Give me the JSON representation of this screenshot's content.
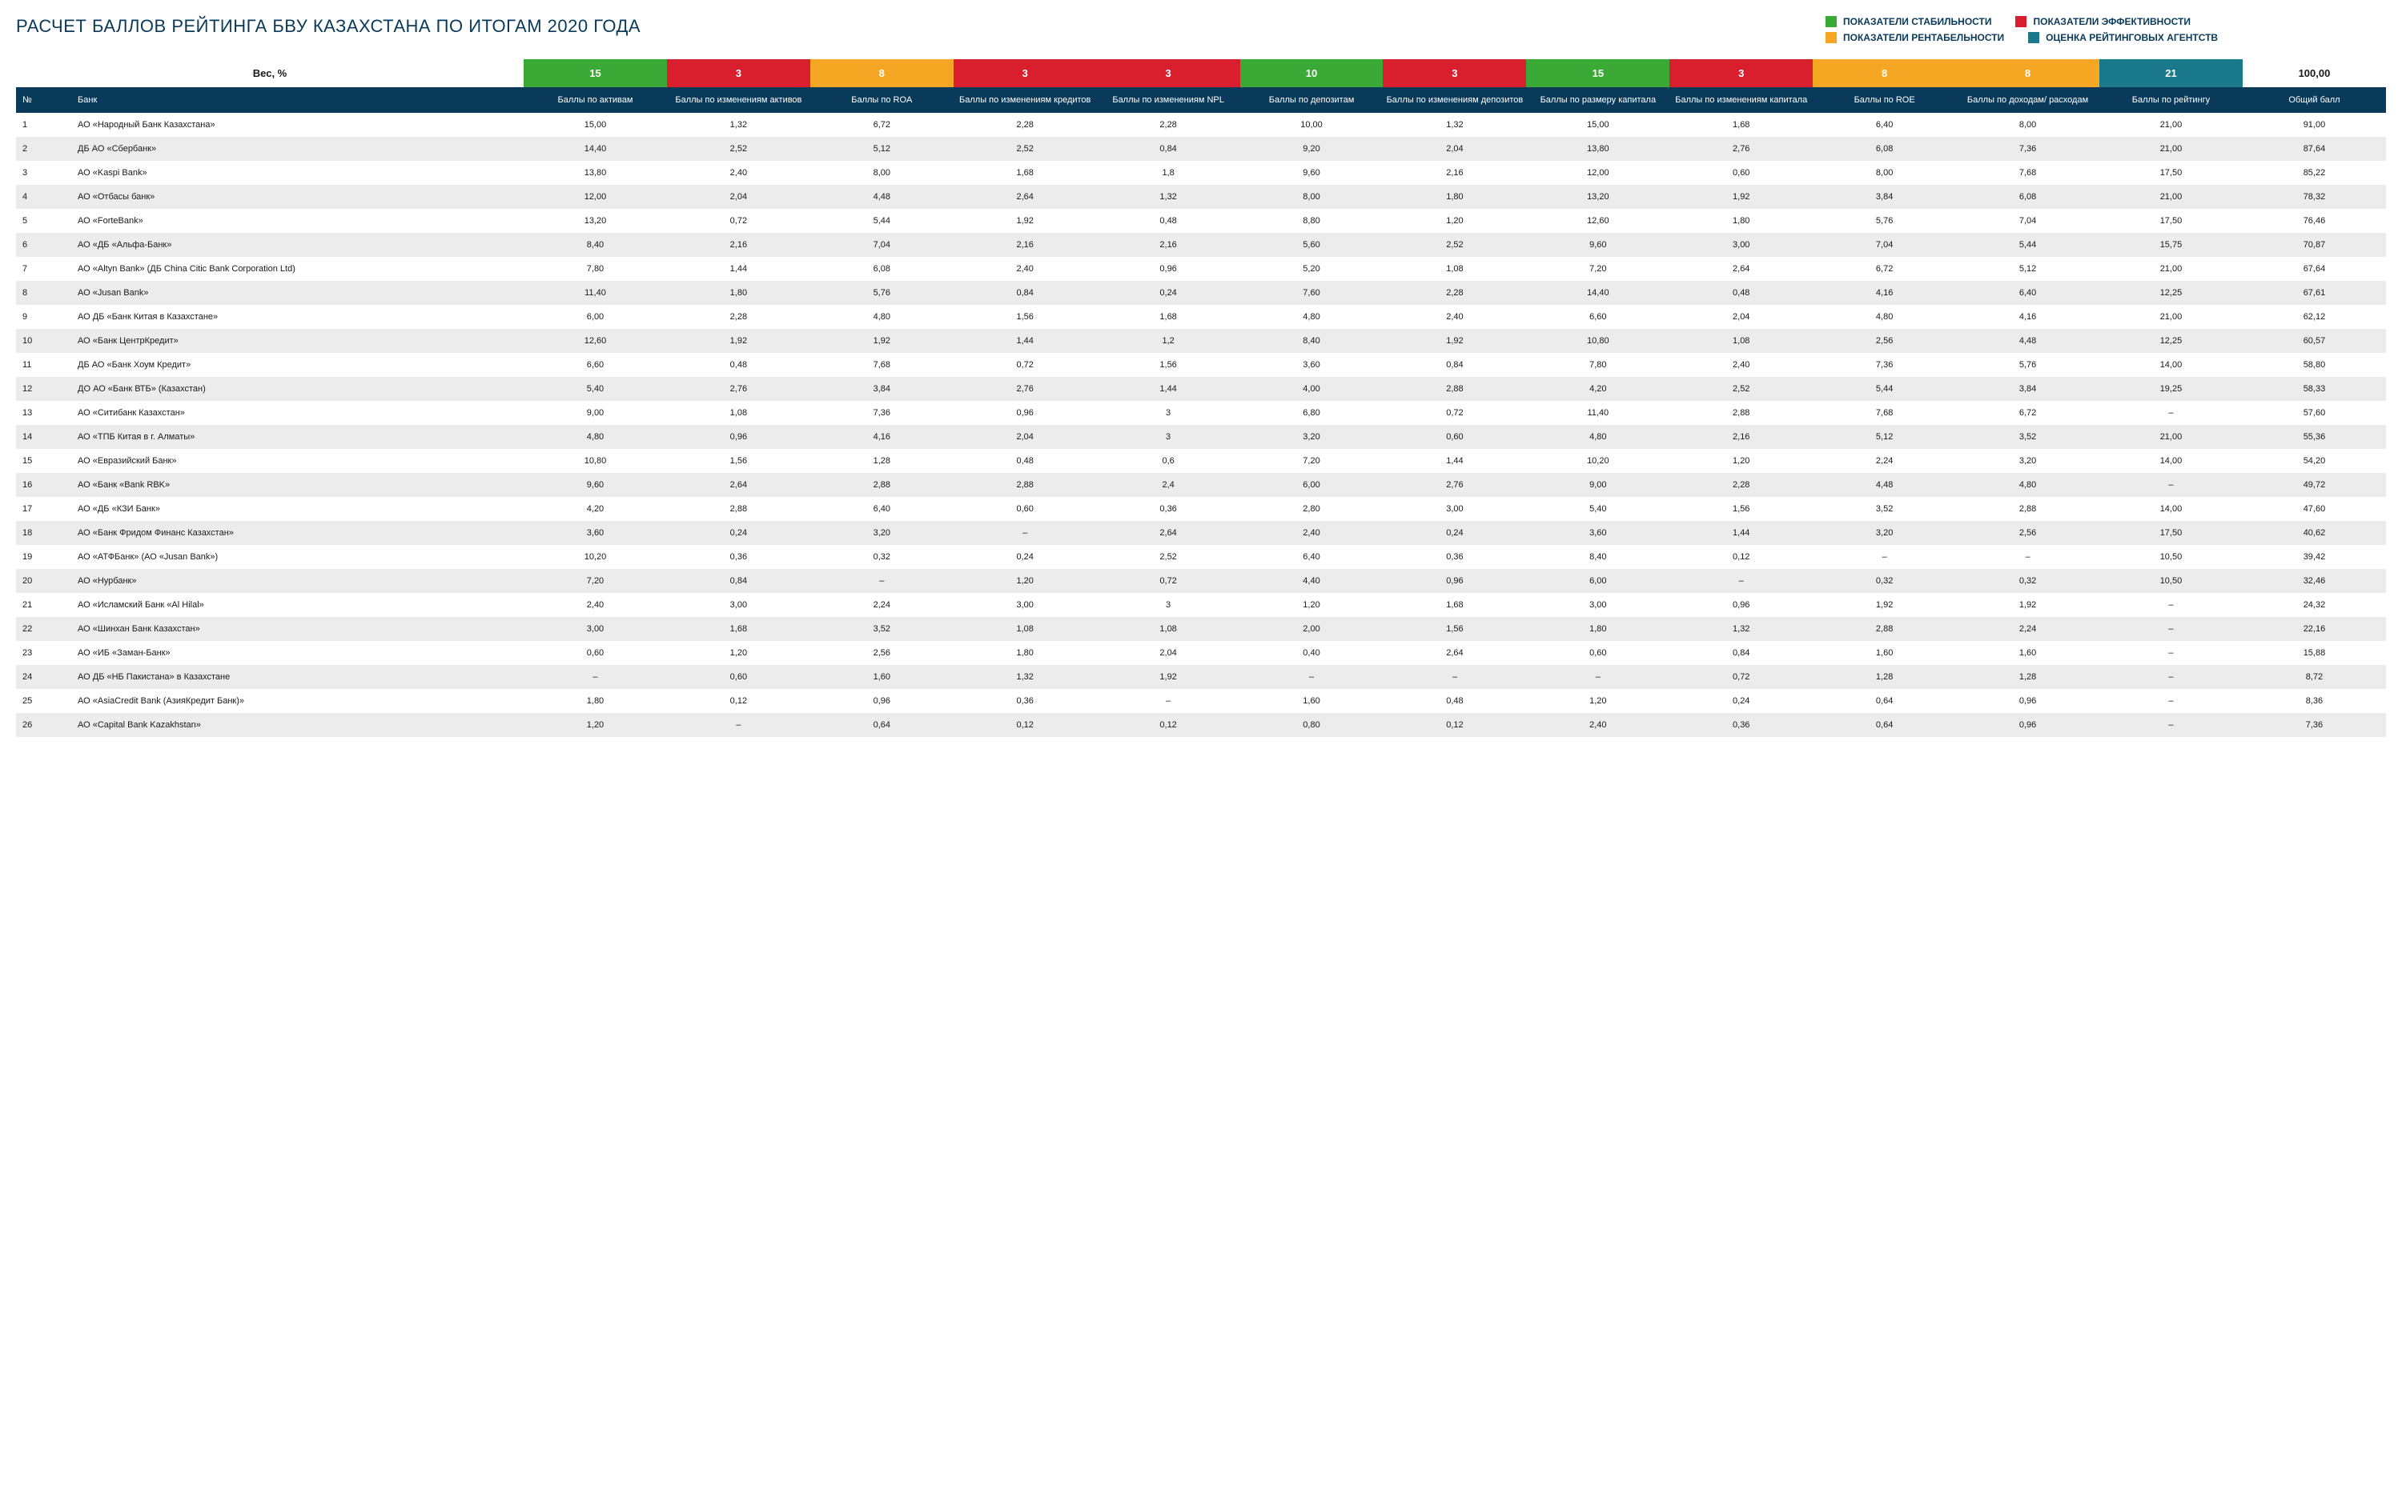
{
  "title": "РАСЧЕТ БАЛЛОВ РЕЙТИНГА БВУ КАЗАХСТАНА ПО ИТОГАМ 2020 ГОДА",
  "colors": {
    "green": "#3aa935",
    "red": "#d91e2e",
    "orange": "#f5a623",
    "teal": "#1a7a8c",
    "headerBg": "#0a3a5a"
  },
  "legend": [
    {
      "label": "ПОКАЗАТЕЛИ СТАБИЛЬНОСТИ",
      "colorKey": "green"
    },
    {
      "label": "ПОКАЗАТЕЛИ ЭФФЕКТИВНОСТИ",
      "colorKey": "red"
    },
    {
      "label": "ПОКАЗАТЕЛИ РЕНТАБЕЛЬНОСТИ",
      "colorKey": "orange"
    },
    {
      "label": "ОЦЕНКА РЕЙТИНГОВЫХ АГЕНТСТВ",
      "colorKey": "teal"
    }
  ],
  "weightsLabel": "Вес, %",
  "totalWeight": "100,00",
  "columns": [
    {
      "key": "num",
      "label": "№"
    },
    {
      "key": "bank",
      "label": "Банк"
    },
    {
      "key": "c1",
      "label": "Баллы по активам",
      "weight": "15",
      "colorKey": "green"
    },
    {
      "key": "c2",
      "label": "Баллы по изменениям активов",
      "weight": "3",
      "colorKey": "red"
    },
    {
      "key": "c3",
      "label": "Баллы по ROA",
      "weight": "8",
      "colorKey": "orange"
    },
    {
      "key": "c4",
      "label": "Баллы по изменениям кредитов",
      "weight": "3",
      "colorKey": "red"
    },
    {
      "key": "c5",
      "label": "Баллы по изменениям NPL",
      "weight": "3",
      "colorKey": "red"
    },
    {
      "key": "c6",
      "label": "Баллы по депозитам",
      "weight": "10",
      "colorKey": "green"
    },
    {
      "key": "c7",
      "label": "Баллы по изменениям депозитов",
      "weight": "3",
      "colorKey": "red"
    },
    {
      "key": "c8",
      "label": "Баллы по размеру капитала",
      "weight": "15",
      "colorKey": "green"
    },
    {
      "key": "c9",
      "label": "Баллы по изменениям капитала",
      "weight": "3",
      "colorKey": "red"
    },
    {
      "key": "c10",
      "label": "Баллы по ROE",
      "weight": "8",
      "colorKey": "orange"
    },
    {
      "key": "c11",
      "label": "Баллы по доходам/ расходам",
      "weight": "8",
      "colorKey": "orange"
    },
    {
      "key": "c12",
      "label": "Баллы по рейтингу",
      "weight": "21",
      "colorKey": "teal"
    },
    {
      "key": "total",
      "label": "Общий балл"
    }
  ],
  "rows": [
    {
      "num": "1",
      "bank": "АО «Народный Банк Казахстана»",
      "c1": "15,00",
      "c2": "1,32",
      "c3": "6,72",
      "c4": "2,28",
      "c5": "2,28",
      "c6": "10,00",
      "c7": "1,32",
      "c8": "15,00",
      "c9": "1,68",
      "c10": "6,40",
      "c11": "8,00",
      "c12": "21,00",
      "total": "91,00"
    },
    {
      "num": "2",
      "bank": "ДБ АО «Сбербанк»",
      "c1": "14,40",
      "c2": "2,52",
      "c3": "5,12",
      "c4": "2,52",
      "c5": "0,84",
      "c6": "9,20",
      "c7": "2,04",
      "c8": "13,80",
      "c9": "2,76",
      "c10": "6,08",
      "c11": "7,36",
      "c12": "21,00",
      "total": "87,64"
    },
    {
      "num": "3",
      "bank": "АО «Kaspi Bank»",
      "c1": "13,80",
      "c2": "2,40",
      "c3": "8,00",
      "c4": "1,68",
      "c5": "1,8",
      "c6": "9,60",
      "c7": "2,16",
      "c8": "12,00",
      "c9": "0,60",
      "c10": "8,00",
      "c11": "7,68",
      "c12": "17,50",
      "total": "85,22"
    },
    {
      "num": "4",
      "bank": "АО «Отбасы банк»",
      "c1": "12,00",
      "c2": "2,04",
      "c3": "4,48",
      "c4": "2,64",
      "c5": "1,32",
      "c6": "8,00",
      "c7": "1,80",
      "c8": "13,20",
      "c9": "1,92",
      "c10": "3,84",
      "c11": "6,08",
      "c12": "21,00",
      "total": "78,32"
    },
    {
      "num": "5",
      "bank": "АО «ForteBank»",
      "c1": "13,20",
      "c2": "0,72",
      "c3": "5,44",
      "c4": "1,92",
      "c5": "0,48",
      "c6": "8,80",
      "c7": "1,20",
      "c8": "12,60",
      "c9": "1,80",
      "c10": "5,76",
      "c11": "7,04",
      "c12": "17,50",
      "total": "76,46"
    },
    {
      "num": "6",
      "bank": "АО «ДБ «Альфа-Банк»",
      "c1": "8,40",
      "c2": "2,16",
      "c3": "7,04",
      "c4": "2,16",
      "c5": "2,16",
      "c6": "5,60",
      "c7": "2,52",
      "c8": "9,60",
      "c9": "3,00",
      "c10": "7,04",
      "c11": "5,44",
      "c12": "15,75",
      "total": "70,87"
    },
    {
      "num": "7",
      "bank": "АО «Altyn Bank» (ДБ China Citic Bank Corporation Ltd)",
      "c1": "7,80",
      "c2": "1,44",
      "c3": "6,08",
      "c4": "2,40",
      "c5": "0,96",
      "c6": "5,20",
      "c7": "1,08",
      "c8": "7,20",
      "c9": "2,64",
      "c10": "6,72",
      "c11": "5,12",
      "c12": "21,00",
      "total": "67,64"
    },
    {
      "num": "8",
      "bank": "АО «Jusan Bank»",
      "c1": "11,40",
      "c2": "1,80",
      "c3": "5,76",
      "c4": "0,84",
      "c5": "0,24",
      "c6": "7,60",
      "c7": "2,28",
      "c8": "14,40",
      "c9": "0,48",
      "c10": "4,16",
      "c11": "6,40",
      "c12": "12,25",
      "total": "67,61"
    },
    {
      "num": "9",
      "bank": "АО ДБ «Банк Китая в Казахстане»",
      "c1": "6,00",
      "c2": "2,28",
      "c3": "4,80",
      "c4": "1,56",
      "c5": "1,68",
      "c6": "4,80",
      "c7": "2,40",
      "c8": "6,60",
      "c9": "2,04",
      "c10": "4,80",
      "c11": "4,16",
      "c12": "21,00",
      "total": "62,12"
    },
    {
      "num": "10",
      "bank": "АО «Банк ЦентрКредит»",
      "c1": "12,60",
      "c2": "1,92",
      "c3": "1,92",
      "c4": "1,44",
      "c5": "1,2",
      "c6": "8,40",
      "c7": "1,92",
      "c8": "10,80",
      "c9": "1,08",
      "c10": "2,56",
      "c11": "4,48",
      "c12": "12,25",
      "total": "60,57"
    },
    {
      "num": "11",
      "bank": "ДБ АО «Банк Хоум Кредит»",
      "c1": "6,60",
      "c2": "0,48",
      "c3": "7,68",
      "c4": "0,72",
      "c5": "1,56",
      "c6": "3,60",
      "c7": "0,84",
      "c8": "7,80",
      "c9": "2,40",
      "c10": "7,36",
      "c11": "5,76",
      "c12": "14,00",
      "total": "58,80"
    },
    {
      "num": "12",
      "bank": "ДО АО «Банк ВТБ» (Казахстан)",
      "c1": "5,40",
      "c2": "2,76",
      "c3": "3,84",
      "c4": "2,76",
      "c5": "1,44",
      "c6": "4,00",
      "c7": "2,88",
      "c8": "4,20",
      "c9": "2,52",
      "c10": "5,44",
      "c11": "3,84",
      "c12": "19,25",
      "total": "58,33"
    },
    {
      "num": "13",
      "bank": "АО «Ситибанк Казахстан»",
      "c1": "9,00",
      "c2": "1,08",
      "c3": "7,36",
      "c4": "0,96",
      "c5": "3",
      "c6": "6,80",
      "c7": "0,72",
      "c8": "11,40",
      "c9": "2,88",
      "c10": "7,68",
      "c11": "6,72",
      "c12": "–",
      "total": "57,60"
    },
    {
      "num": "14",
      "bank": "АО «ТПБ Китая в г. Алматы»",
      "c1": "4,80",
      "c2": "0,96",
      "c3": "4,16",
      "c4": "2,04",
      "c5": "3",
      "c6": "3,20",
      "c7": "0,60",
      "c8": "4,80",
      "c9": "2,16",
      "c10": "5,12",
      "c11": "3,52",
      "c12": "21,00",
      "total": "55,36"
    },
    {
      "num": "15",
      "bank": "АО «Евразийский Банк»",
      "c1": "10,80",
      "c2": "1,56",
      "c3": "1,28",
      "c4": "0,48",
      "c5": "0,6",
      "c6": "7,20",
      "c7": "1,44",
      "c8": "10,20",
      "c9": "1,20",
      "c10": "2,24",
      "c11": "3,20",
      "c12": "14,00",
      "total": "54,20"
    },
    {
      "num": "16",
      "bank": "АО «Банк «Bank RBK»",
      "c1": "9,60",
      "c2": "2,64",
      "c3": "2,88",
      "c4": "2,88",
      "c5": "2,4",
      "c6": "6,00",
      "c7": "2,76",
      "c8": "9,00",
      "c9": "2,28",
      "c10": "4,48",
      "c11": "4,80",
      "c12": "–",
      "total": "49,72"
    },
    {
      "num": "17",
      "bank": "АО «ДБ «КЗИ Банк»",
      "c1": "4,20",
      "c2": "2,88",
      "c3": "6,40",
      "c4": "0,60",
      "c5": "0,36",
      "c6": "2,80",
      "c7": "3,00",
      "c8": "5,40",
      "c9": "1,56",
      "c10": "3,52",
      "c11": "2,88",
      "c12": "14,00",
      "total": "47,60"
    },
    {
      "num": "18",
      "bank": "АО «Банк Фридом Финанс Казахстан»",
      "c1": "3,60",
      "c2": "0,24",
      "c3": "3,20",
      "c4": "–",
      "c5": "2,64",
      "c6": "2,40",
      "c7": "0,24",
      "c8": "3,60",
      "c9": "1,44",
      "c10": "3,20",
      "c11": "2,56",
      "c12": "17,50",
      "total": "40,62"
    },
    {
      "num": "19",
      "bank": "АО «АТФБанк» (АО «Jusan Bank»)",
      "c1": "10,20",
      "c2": "0,36",
      "c3": "0,32",
      "c4": "0,24",
      "c5": "2,52",
      "c6": "6,40",
      "c7": "0,36",
      "c8": "8,40",
      "c9": "0,12",
      "c10": "–",
      "c11": "–",
      "c12": "10,50",
      "total": "39,42"
    },
    {
      "num": "20",
      "bank": "АО «Нурбанк»",
      "c1": "7,20",
      "c2": "0,84",
      "c3": "–",
      "c4": "1,20",
      "c5": "0,72",
      "c6": "4,40",
      "c7": "0,96",
      "c8": "6,00",
      "c9": "–",
      "c10": "0,32",
      "c11": "0,32",
      "c12": "10,50",
      "total": "32,46"
    },
    {
      "num": "21",
      "bank": "АО «Исламский Банк «Al Hilal»",
      "c1": "2,40",
      "c2": "3,00",
      "c3": "2,24",
      "c4": "3,00",
      "c5": "3",
      "c6": "1,20",
      "c7": "1,68",
      "c8": "3,00",
      "c9": "0,96",
      "c10": "1,92",
      "c11": "1,92",
      "c12": "–",
      "total": "24,32"
    },
    {
      "num": "22",
      "bank": "АО «Шинхан Банк Казахстан»",
      "c1": "3,00",
      "c2": "1,68",
      "c3": "3,52",
      "c4": "1,08",
      "c5": "1,08",
      "c6": "2,00",
      "c7": "1,56",
      "c8": "1,80",
      "c9": "1,32",
      "c10": "2,88",
      "c11": "2,24",
      "c12": "–",
      "total": "22,16"
    },
    {
      "num": "23",
      "bank": "АО «ИБ «Заман-Банк»",
      "c1": "0,60",
      "c2": "1,20",
      "c3": "2,56",
      "c4": "1,80",
      "c5": "2,04",
      "c6": "0,40",
      "c7": "2,64",
      "c8": "0,60",
      "c9": "0,84",
      "c10": "1,60",
      "c11": "1,60",
      "c12": "–",
      "total": "15,88"
    },
    {
      "num": "24",
      "bank": "АО ДБ «НБ Пакистана» в Казахстане",
      "c1": "–",
      "c2": "0,60",
      "c3": "1,60",
      "c4": "1,32",
      "c5": "1,92",
      "c6": "–",
      "c7": "–",
      "c8": "–",
      "c9": "0,72",
      "c10": "1,28",
      "c11": "1,28",
      "c12": "–",
      "total": "8,72"
    },
    {
      "num": "25",
      "bank": "АО «AsiaCredit Bank (АзияКредит Банк)»",
      "c1": "1,80",
      "c2": "0,12",
      "c3": "0,96",
      "c4": "0,36",
      "c5": "–",
      "c6": "1,60",
      "c7": "0,48",
      "c8": "1,20",
      "c9": "0,24",
      "c10": "0,64",
      "c11": "0,96",
      "c12": "–",
      "total": "8,36"
    },
    {
      "num": "26",
      "bank": "АО «Capital Bank Kazakhstan»",
      "c1": "1,20",
      "c2": "–",
      "c3": "0,64",
      "c4": "0,12",
      "c5": "0,12",
      "c6": "0,80",
      "c7": "0,12",
      "c8": "2,40",
      "c9": "0,36",
      "c10": "0,64",
      "c11": "0,96",
      "c12": "–",
      "total": "7,36"
    }
  ]
}
